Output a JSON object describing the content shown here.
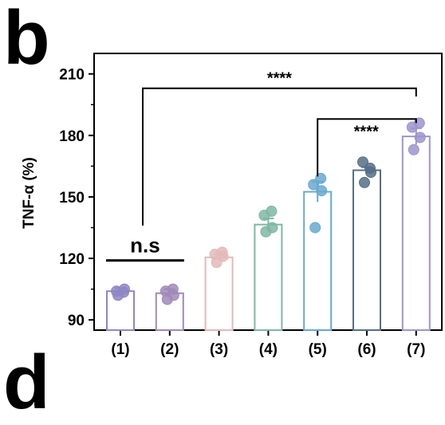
{
  "panel_labels": {
    "b": "b",
    "d": "d"
  },
  "chart_data": {
    "type": "bar",
    "title": "",
    "xlabel": "",
    "ylabel": "TNF-α (%)",
    "ylim": [
      85,
      220
    ],
    "yticks": [
      90,
      120,
      150,
      180,
      210
    ],
    "categories": [
      "(1)",
      "(2)",
      "(3)",
      "(4)",
      "(5)",
      "(6)",
      "(7)"
    ],
    "values": [
      104,
      103,
      120.5,
      136.5,
      152.5,
      163,
      179.5
    ],
    "errors": [
      1.5,
      2,
      1.5,
      3,
      5,
      1.5,
      4
    ],
    "colors": [
      "#8f86c4",
      "#a08ab8",
      "#e3b9b9",
      "#7fb7a3",
      "#69a9cf",
      "#566f86",
      "#9d94cf"
    ],
    "points": [
      [
        104,
        102,
        105,
        103.5
      ],
      [
        104,
        100,
        102,
        105
      ],
      [
        122,
        118,
        121,
        123
      ],
      [
        141,
        133,
        135,
        143
      ],
      [
        156,
        135,
        153,
        159
      ],
      [
        167,
        157,
        162,
        164
      ],
      [
        184,
        173,
        179,
        186
      ]
    ],
    "annotations": [
      {
        "label": "n.s",
        "from": "(1)",
        "to": "(2)"
      },
      {
        "label": "****",
        "from": "(1)",
        "to": "(7)"
      },
      {
        "label": "****",
        "from": "(5)",
        "to": "(7)"
      }
    ]
  }
}
